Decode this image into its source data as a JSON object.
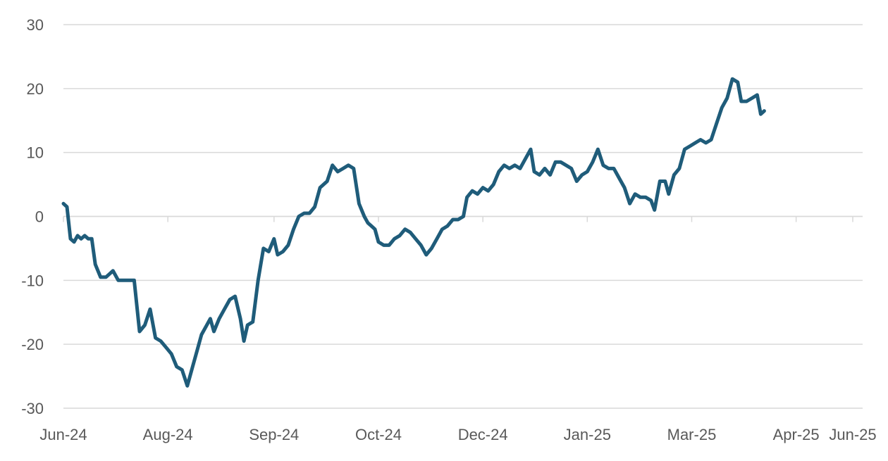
{
  "chart_data": {
    "type": "line",
    "title": "",
    "xlabel": "",
    "ylabel": "",
    "ylim": [
      -30,
      30
    ],
    "yticks": [
      -30,
      -20,
      -10,
      0,
      10,
      20,
      30
    ],
    "grid": true,
    "legend": "none",
    "colors": {
      "line": "#1f5c7a",
      "grid": "#d9d9d9",
      "text": "#595959"
    },
    "x_ticks": [
      {
        "label": "Jun-24",
        "date": "2024-06-03"
      },
      {
        "label": "Aug-24",
        "date": "2024-08-01"
      },
      {
        "label": "Sep-24",
        "date": "2024-09-30"
      },
      {
        "label": "Oct-24",
        "date": "2024-11-28"
      },
      {
        "label": "Dec-24",
        "date": "2025-01-26"
      },
      {
        "label": "Jan-25",
        "date": "2025-03-26"
      },
      {
        "label": "Mar-25",
        "date": "2025-05-24"
      },
      {
        "label": "Apr-25",
        "date": "2025-07-22"
      },
      {
        "label": "Jun-25",
        "date": "2025-08-23"
      }
    ],
    "series": [
      {
        "points": [
          [
            "2024-06-03",
            2
          ],
          [
            "2024-06-05",
            1.5
          ],
          [
            "2024-06-07",
            -3.5
          ],
          [
            "2024-06-09",
            -4
          ],
          [
            "2024-06-11",
            -3
          ],
          [
            "2024-06-13",
            -3.5
          ],
          [
            "2024-06-15",
            -3
          ],
          [
            "2024-06-17",
            -3.5
          ],
          [
            "2024-06-19",
            -3.5
          ],
          [
            "2024-06-21",
            -7.5
          ],
          [
            "2024-06-24",
            -9.5
          ],
          [
            "2024-06-27",
            -9.5
          ],
          [
            "2024-06-29",
            -9
          ],
          [
            "2024-07-01",
            -8.5
          ],
          [
            "2024-07-04",
            -10
          ],
          [
            "2024-07-07",
            -10
          ],
          [
            "2024-07-10",
            -10
          ],
          [
            "2024-07-13",
            -10
          ],
          [
            "2024-07-16",
            -18
          ],
          [
            "2024-07-19",
            -17
          ],
          [
            "2024-07-22",
            -14.5
          ],
          [
            "2024-07-25",
            -19
          ],
          [
            "2024-07-28",
            -19.5
          ],
          [
            "2024-07-31",
            -20.5
          ],
          [
            "2024-08-03",
            -21.5
          ],
          [
            "2024-08-06",
            -23.5
          ],
          [
            "2024-08-09",
            -24
          ],
          [
            "2024-08-12",
            -26.5
          ],
          [
            "2024-08-15",
            -23.5
          ],
          [
            "2024-08-18",
            -20.5
          ],
          [
            "2024-08-20",
            -18.5
          ],
          [
            "2024-08-23",
            -17
          ],
          [
            "2024-08-25",
            -16
          ],
          [
            "2024-08-27",
            -18
          ],
          [
            "2024-08-30",
            -16
          ],
          [
            "2024-09-02",
            -14.5
          ],
          [
            "2024-09-05",
            -13
          ],
          [
            "2024-09-08",
            -12.5
          ],
          [
            "2024-09-11",
            -16
          ],
          [
            "2024-09-13",
            -19.5
          ],
          [
            "2024-09-15",
            -17
          ],
          [
            "2024-09-18",
            -16.5
          ],
          [
            "2024-09-21",
            -10
          ],
          [
            "2024-09-24",
            -5
          ],
          [
            "2024-09-27",
            -5.5
          ],
          [
            "2024-09-30",
            -3.5
          ],
          [
            "2024-10-02",
            -6
          ],
          [
            "2024-10-05",
            -5.5
          ],
          [
            "2024-10-08",
            -4.5
          ],
          [
            "2024-10-11",
            -2
          ],
          [
            "2024-10-14",
            0
          ],
          [
            "2024-10-17",
            0.5
          ],
          [
            "2024-10-20",
            0.5
          ],
          [
            "2024-10-23",
            1.5
          ],
          [
            "2024-10-26",
            4.5
          ],
          [
            "2024-10-28",
            5
          ],
          [
            "2024-10-30",
            5.5
          ],
          [
            "2024-11-02",
            8
          ],
          [
            "2024-11-05",
            7
          ],
          [
            "2024-11-08",
            7.5
          ],
          [
            "2024-11-11",
            8
          ],
          [
            "2024-11-14",
            7.5
          ],
          [
            "2024-11-17",
            2
          ],
          [
            "2024-11-20",
            0
          ],
          [
            "2024-11-22",
            -1
          ],
          [
            "2024-11-24",
            -1.5
          ],
          [
            "2024-11-26",
            -2
          ],
          [
            "2024-11-28",
            -4
          ],
          [
            "2024-12-01",
            -4.5
          ],
          [
            "2024-12-04",
            -4.5
          ],
          [
            "2024-12-07",
            -3.5
          ],
          [
            "2024-12-10",
            -3
          ],
          [
            "2024-12-13",
            -2
          ],
          [
            "2024-12-16",
            -2.5
          ],
          [
            "2024-12-19",
            -3.5
          ],
          [
            "2024-12-22",
            -4.5
          ],
          [
            "2024-12-25",
            -6
          ],
          [
            "2024-12-28",
            -5
          ],
          [
            "2024-12-31",
            -3.5
          ],
          [
            "2025-01-03",
            -2
          ],
          [
            "2025-01-06",
            -1.5
          ],
          [
            "2025-01-09",
            -0.5
          ],
          [
            "2025-01-12",
            -0.5
          ],
          [
            "2025-01-15",
            0
          ],
          [
            "2025-01-17",
            3
          ],
          [
            "2025-01-20",
            4
          ],
          [
            "2025-01-23",
            3.5
          ],
          [
            "2025-01-26",
            4.5
          ],
          [
            "2025-01-29",
            4
          ],
          [
            "2025-02-01",
            5
          ],
          [
            "2025-02-04",
            7
          ],
          [
            "2025-02-07",
            8
          ],
          [
            "2025-02-10",
            7.5
          ],
          [
            "2025-02-13",
            8
          ],
          [
            "2025-02-16",
            7.5
          ],
          [
            "2025-02-19",
            9
          ],
          [
            "2025-02-22",
            10.5
          ],
          [
            "2025-02-24",
            7
          ],
          [
            "2025-02-27",
            6.5
          ],
          [
            "2025-03-02",
            7.5
          ],
          [
            "2025-03-05",
            6.5
          ],
          [
            "2025-03-08",
            8.5
          ],
          [
            "2025-03-11",
            8.5
          ],
          [
            "2025-03-14",
            8
          ],
          [
            "2025-03-17",
            7.5
          ],
          [
            "2025-03-20",
            5.5
          ],
          [
            "2025-03-23",
            6.5
          ],
          [
            "2025-03-26",
            7
          ],
          [
            "2025-03-29",
            8.5
          ],
          [
            "2025-04-01",
            10.5
          ],
          [
            "2025-04-04",
            8
          ],
          [
            "2025-04-07",
            7.5
          ],
          [
            "2025-04-10",
            7.5
          ],
          [
            "2025-04-13",
            6
          ],
          [
            "2025-04-16",
            4.5
          ],
          [
            "2025-04-19",
            2
          ],
          [
            "2025-04-22",
            3.5
          ],
          [
            "2025-04-25",
            3
          ],
          [
            "2025-04-28",
            3
          ],
          [
            "2025-05-01",
            2.5
          ],
          [
            "2025-05-03",
            1
          ],
          [
            "2025-05-06",
            5.5
          ],
          [
            "2025-05-09",
            5.5
          ],
          [
            "2025-05-11",
            3.5
          ],
          [
            "2025-05-14",
            6.5
          ],
          [
            "2025-05-17",
            7.5
          ],
          [
            "2025-05-20",
            10.5
          ],
          [
            "2025-05-23",
            11
          ],
          [
            "2025-05-26",
            11.5
          ],
          [
            "2025-05-29",
            12
          ],
          [
            "2025-06-01",
            11.5
          ],
          [
            "2025-06-04",
            12
          ],
          [
            "2025-06-07",
            14.5
          ],
          [
            "2025-06-10",
            17
          ],
          [
            "2025-06-13",
            18.5
          ],
          [
            "2025-06-16",
            21.5
          ],
          [
            "2025-06-19",
            21
          ],
          [
            "2025-06-21",
            18
          ],
          [
            "2025-06-24",
            18
          ],
          [
            "2025-06-27",
            18.5
          ],
          [
            "2025-06-30",
            19
          ],
          [
            "2025-07-02",
            16
          ],
          [
            "2025-07-04",
            16.5
          ]
        ]
      }
    ]
  }
}
